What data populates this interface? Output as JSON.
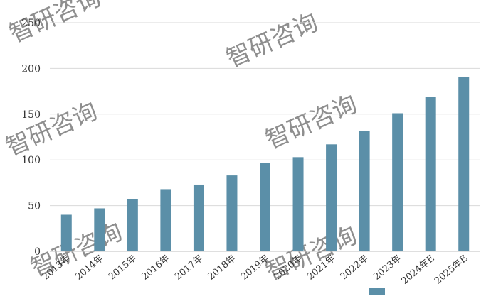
{
  "watermark": {
    "text": "智研咨询",
    "color": "#d9e1ea"
  },
  "chart_data": {
    "type": "bar",
    "categories": [
      "2013年",
      "2014年",
      "2015年",
      "2016年",
      "2017年",
      "2018年",
      "2019年",
      "2020年",
      "2021年",
      "2022年",
      "2023年",
      "2024年E",
      "2025年E"
    ],
    "values": [
      40,
      47,
      57,
      68,
      73,
      83,
      97,
      103,
      117,
      132,
      151,
      169,
      191
    ],
    "title": "",
    "xlabel": "",
    "ylabel": "",
    "ylim": [
      0,
      250
    ],
    "yticks": [
      0,
      50,
      100,
      150,
      200,
      250
    ],
    "grid": true,
    "legend": "bottom-center",
    "colors": {
      "bar": "#5b8fa8",
      "grid": "#d9d9d9",
      "axis": "#bfbfbf",
      "text": "#333333"
    }
  }
}
